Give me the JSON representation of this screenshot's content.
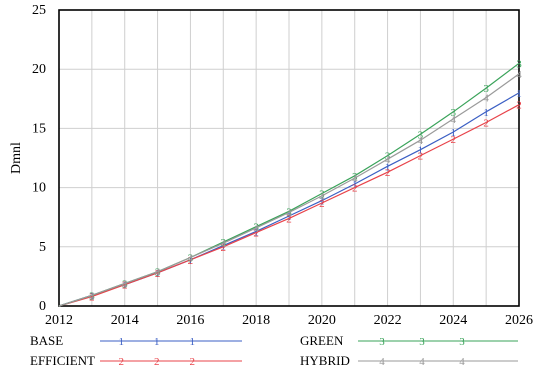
{
  "chart_data": {
    "type": "line",
    "title": "",
    "xlabel": "",
    "ylabel": "Dmnl",
    "xlim": [
      2012,
      2026
    ],
    "ylim": [
      0,
      25
    ],
    "x_ticks": [
      "2012",
      "2014",
      "2016",
      "2018",
      "2020",
      "2022",
      "2024",
      "2026"
    ],
    "y_ticks": [
      "0",
      "5",
      "10",
      "15",
      "20",
      "25"
    ],
    "grid": true,
    "legend_placement": "bottom",
    "series": [
      {
        "name": "BASE",
        "marker": "1",
        "color": "#3b5fc4",
        "x": [
          2012,
          2013,
          2014,
          2015,
          2016,
          2017,
          2018,
          2019,
          2020,
          2021,
          2022,
          2023,
          2024,
          2025,
          2026
        ],
        "y": [
          0.0,
          0.9,
          1.8,
          2.8,
          3.9,
          5.1,
          6.3,
          7.6,
          8.9,
          10.3,
          11.8,
          13.2,
          14.7,
          16.4,
          18.0
        ]
      },
      {
        "name": "EFFICIENT",
        "marker": "2",
        "color": "#e8434a",
        "x": [
          2012,
          2013,
          2014,
          2015,
          2016,
          2017,
          2018,
          2019,
          2020,
          2021,
          2022,
          2023,
          2024,
          2025,
          2026
        ],
        "y": [
          0.0,
          0.8,
          1.8,
          2.8,
          3.9,
          5.0,
          6.2,
          7.4,
          8.7,
          10.0,
          11.3,
          12.7,
          14.1,
          15.5,
          17.0
        ]
      },
      {
        "name": "GREEN",
        "marker": "3",
        "color": "#3aa35a",
        "x": [
          2012,
          2013,
          2014,
          2015,
          2016,
          2017,
          2018,
          2019,
          2020,
          2021,
          2022,
          2023,
          2024,
          2025,
          2026
        ],
        "y": [
          0.0,
          0.9,
          1.9,
          2.9,
          4.1,
          5.4,
          6.7,
          8.0,
          9.5,
          11.0,
          12.7,
          14.5,
          16.4,
          18.4,
          20.5
        ]
      },
      {
        "name": "HYBRID",
        "marker": "4",
        "color": "#9a9a9a",
        "x": [
          2012,
          2013,
          2014,
          2015,
          2016,
          2017,
          2018,
          2019,
          2020,
          2021,
          2022,
          2023,
          2024,
          2025,
          2026
        ],
        "y": [
          0.0,
          0.9,
          1.9,
          2.9,
          4.1,
          5.3,
          6.6,
          7.9,
          9.3,
          10.8,
          12.4,
          14.0,
          15.8,
          17.6,
          19.6
        ]
      }
    ]
  }
}
